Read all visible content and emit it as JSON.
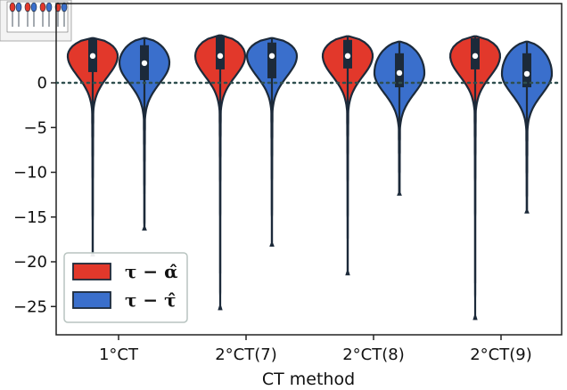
{
  "chart_data": {
    "type": "violin",
    "title": "",
    "xlabel": "CT method",
    "ylabel": "",
    "categories": [
      "1°CT",
      "2°CT(7)",
      "2°CT(8)",
      "2°CT(9)"
    ],
    "ylim": [
      -28,
      5.6
    ],
    "yticks": [
      0,
      -5,
      -10,
      -15,
      -20,
      -25
    ],
    "ytick_labels": [
      "0",
      "−5",
      "−10",
      "−15",
      "−20",
      "−25"
    ],
    "reference_line": 0,
    "legend_position": "lower-left",
    "series": [
      {
        "name": "τ − α̂",
        "color": "#e2382b",
        "violins": [
          {
            "min": -19.3,
            "max": 5.0,
            "q1": 1.2,
            "median": 3.0,
            "q3": 5.0,
            "whisker_low": -4.0,
            "whisker_high": 5.0
          },
          {
            "min": -25.3,
            "max": 5.3,
            "q1": 1.5,
            "median": 3.0,
            "q3": 5.2,
            "whisker_low": -4.5,
            "whisker_high": 5.3
          },
          {
            "min": -21.4,
            "max": 5.2,
            "q1": 1.6,
            "median": 3.0,
            "q3": 4.8,
            "whisker_low": -3.5,
            "whisker_high": 5.2
          },
          {
            "min": -26.4,
            "max": 5.2,
            "q1": 1.5,
            "median": 3.0,
            "q3": 5.0,
            "whisker_low": -4.0,
            "whisker_high": 5.2
          }
        ]
      },
      {
        "name": "τ − τ̂",
        "color": "#3a6fcc",
        "violins": [
          {
            "min": -16.4,
            "max": 5.0,
            "q1": 0.3,
            "median": 2.2,
            "q3": 4.2,
            "whisker_low": -2.0,
            "whisker_high": 5.0
          },
          {
            "min": -18.2,
            "max": 5.0,
            "q1": 0.5,
            "median": 3.0,
            "q3": 4.5,
            "whisker_low": -2.5,
            "whisker_high": 5.0
          },
          {
            "min": -12.5,
            "max": 4.6,
            "q1": -0.5,
            "median": 1.1,
            "q3": 3.3,
            "whisker_low": -2.0,
            "whisker_high": 4.6
          },
          {
            "min": -14.5,
            "max": 4.6,
            "q1": -0.5,
            "median": 1.0,
            "q3": 3.3,
            "whisker_low": -2.0,
            "whisker_high": 4.6
          }
        ]
      }
    ]
  }
}
